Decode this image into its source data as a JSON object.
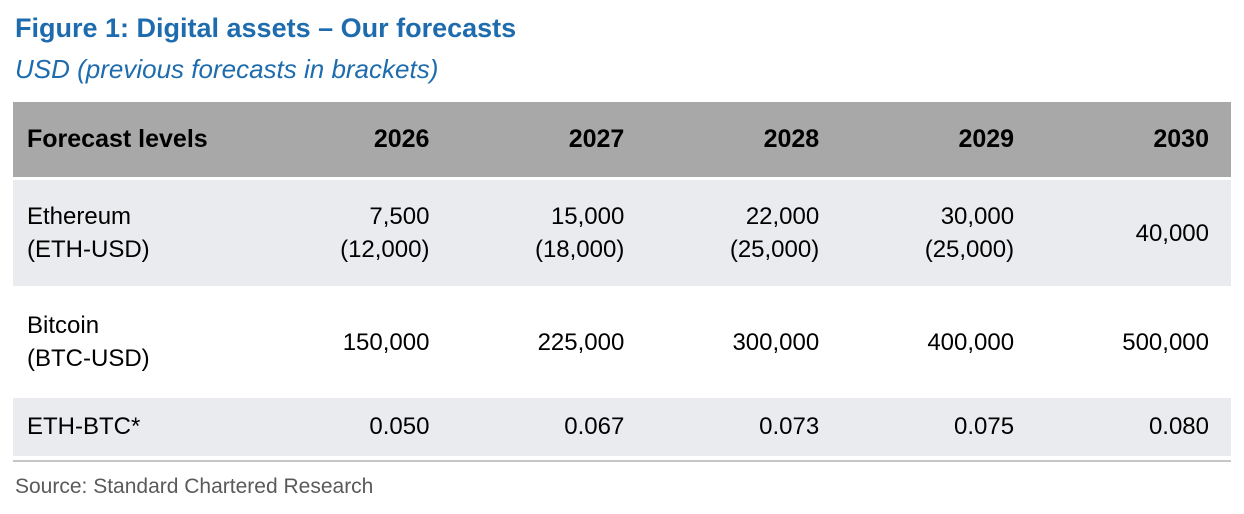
{
  "figure": {
    "title": "Figure 1: Digital assets – Our forecasts",
    "subtitle": "USD (previous forecasts in brackets)",
    "source": "Source: Standard Chartered Research"
  },
  "table": {
    "header": [
      "Forecast levels",
      "2026",
      "2027",
      "2028",
      "2029",
      "2030"
    ],
    "rows": [
      {
        "label_line1": "Ethereum",
        "label_line2": "(ETH-USD)",
        "cells": [
          {
            "current": "7,500",
            "previous": "(12,000)"
          },
          {
            "current": "15,000",
            "previous": "(18,000)"
          },
          {
            "current": "22,000",
            "previous": "(25,000)"
          },
          {
            "current": "30,000",
            "previous": "(25,000)"
          },
          {
            "current": "40,000",
            "previous": ""
          }
        ]
      },
      {
        "label_line1": "Bitcoin",
        "label_line2": "(BTC-USD)",
        "cells": [
          {
            "current": "150,000",
            "previous": ""
          },
          {
            "current": "225,000",
            "previous": ""
          },
          {
            "current": "300,000",
            "previous": ""
          },
          {
            "current": "400,000",
            "previous": ""
          },
          {
            "current": "500,000",
            "previous": ""
          }
        ]
      },
      {
        "label_line1": "ETH-BTC*",
        "label_line2": "",
        "cells": [
          {
            "current": "0.050",
            "previous": ""
          },
          {
            "current": "0.067",
            "previous": ""
          },
          {
            "current": "0.073",
            "previous": ""
          },
          {
            "current": "0.075",
            "previous": ""
          },
          {
            "current": "0.080",
            "previous": ""
          }
        ]
      }
    ]
  },
  "chart_data": {
    "type": "table",
    "title": "Figure 1: Digital assets – Our forecasts",
    "subtitle": "USD (previous forecasts in brackets)",
    "columns": [
      "Forecast levels",
      "2026",
      "2027",
      "2028",
      "2029",
      "2030"
    ],
    "rows": [
      {
        "label": "Ethereum (ETH-USD)",
        "current_forecasts": [
          7500,
          15000,
          22000,
          30000,
          40000
        ],
        "previous_forecasts": [
          12000,
          18000,
          25000,
          25000,
          null
        ]
      },
      {
        "label": "Bitcoin (BTC-USD)",
        "current_forecasts": [
          150000,
          225000,
          300000,
          400000,
          500000
        ],
        "previous_forecasts": [
          null,
          null,
          null,
          null,
          null
        ]
      },
      {
        "label": "ETH-BTC*",
        "current_forecasts": [
          0.05,
          0.067,
          0.073,
          0.075,
          0.08
        ],
        "previous_forecasts": [
          null,
          null,
          null,
          null,
          null
        ]
      }
    ],
    "source": "Source: Standard Chartered Research"
  },
  "colors": {
    "title_blue": "#1e6cad",
    "header_bg": "#a8a8a8",
    "row_alt_bg": "#e9ebee",
    "row_white_bg": "#ffffff",
    "source_text": "#5a5a5a",
    "divider": "#c6c6c6"
  }
}
